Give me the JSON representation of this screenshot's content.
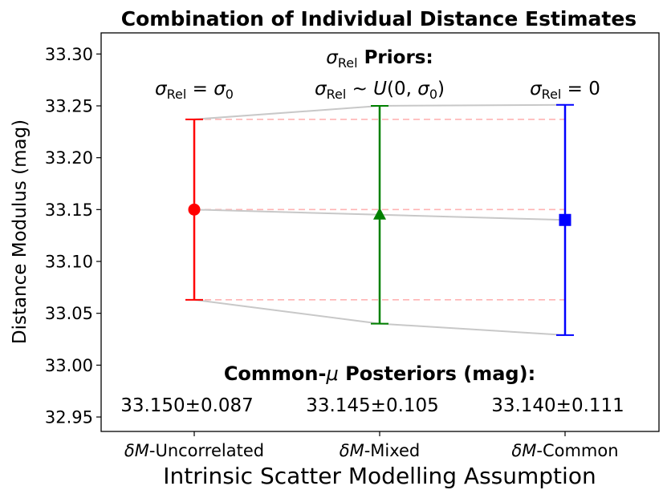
{
  "chart_data": {
    "type": "scatter",
    "title": "Combination of Individual Distance Estimates",
    "xlabel": "Intrinsic Scatter Modelling Assumption",
    "ylabel": "Distance Modulus (mag)",
    "ylim": [
      32.935,
      33.32
    ],
    "yticks": [
      "32.95",
      "33.00",
      "33.05",
      "33.10",
      "33.15",
      "33.20",
      "33.25",
      "33.30"
    ],
    "ytick_values": [
      32.95,
      33.0,
      33.05,
      33.1,
      33.15,
      33.2,
      33.25,
      33.3
    ],
    "categories": [
      {
        "pre": "δM",
        "post": "-Uncorrelated"
      },
      {
        "pre": "δM",
        "post": "-Mixed"
      },
      {
        "pre": "δM",
        "post": "-Common"
      }
    ],
    "points": [
      {
        "mean": 33.15,
        "lo": 33.063,
        "hi": 33.237,
        "marker": "circle",
        "color": "#ff0000"
      },
      {
        "mean": 33.145,
        "lo": 33.04,
        "hi": 33.25,
        "marker": "triangle",
        "color": "#008000"
      },
      {
        "mean": 33.14,
        "lo": 33.029,
        "hi": 33.251,
        "marker": "square",
        "color": "#0000ff"
      }
    ],
    "reference_lines": [
      33.063,
      33.15,
      33.237
    ],
    "reference_color": "#ffb3b3",
    "connector_color": "#c8c8c8",
    "priors_heading": {
      "sigma": "σ",
      "sub": "Rel",
      "rest": " Priors:"
    },
    "priors": [
      {
        "sigma": "σ",
        "sub": "Rel",
        "rest": " = ",
        "tail_sigma": "σ",
        "tail_sub": "0",
        "close": ""
      },
      {
        "sigma": "σ",
        "sub": "Rel",
        "rest": " ~ ",
        "tail_italic": "U",
        "paren": "(0, ",
        "tail_sigma": "σ",
        "tail_sub": "0",
        "close": ")"
      },
      {
        "sigma": "σ",
        "sub": "Rel",
        "rest": " = 0"
      }
    ],
    "posterior_heading": {
      "pre": "Common-",
      "mu": "μ",
      "post": " Posteriors (mag):"
    },
    "posteriors": [
      "33.150±0.087",
      "33.145±0.105",
      "33.140±0.111"
    ]
  }
}
